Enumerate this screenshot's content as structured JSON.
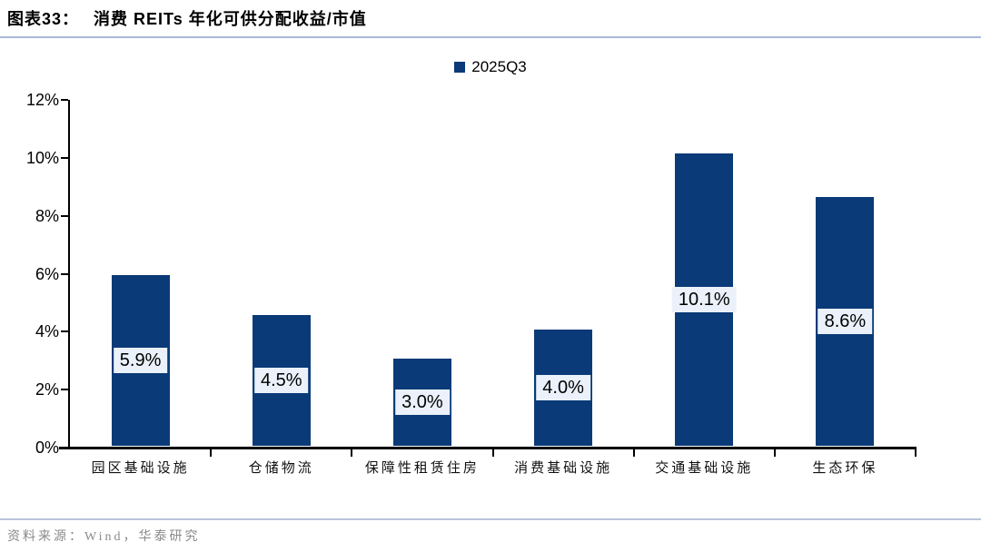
{
  "header": {
    "title_prefix": "图表33：",
    "title_text": "消费 REITs 年化可供分配收益/市值"
  },
  "legend": {
    "label": "2025Q3"
  },
  "footer": {
    "source": "资料来源：Wind，华泰研究"
  },
  "colors": {
    "bar": "#0a3a77",
    "value_label_bg": "#eaf1fa",
    "title_rule": "#a9b9d8",
    "footer_rule": "#b7c3da",
    "footer_text": "#8a8a8a",
    "axis": "#000000"
  },
  "chart_data": {
    "type": "bar",
    "title": "图表33：消费 REITs 年化可供分配收益/市值",
    "categories": [
      "园区基础设施",
      "仓储物流",
      "保障性租赁住房",
      "消费基础设施",
      "交通基础设施",
      "生态环保"
    ],
    "series": [
      {
        "name": "2025Q3",
        "values": [
          5.9,
          4.5,
          3.0,
          4.0,
          10.1,
          8.6
        ]
      }
    ],
    "value_labels": [
      "5.9%",
      "4.5%",
      "3.0%",
      "4.0%",
      "10.1%",
      "8.6%"
    ],
    "xlabel": "",
    "ylabel": "",
    "ylim": [
      0,
      12
    ],
    "ytick_values": [
      0,
      2,
      4,
      6,
      8,
      10,
      12
    ],
    "ytick_labels": [
      "0%",
      "2%",
      "4%",
      "6%",
      "8%",
      "10%",
      "12%"
    ],
    "grid": false,
    "legend_position": "top-center",
    "source": "资料来源：Wind，华泰研究"
  }
}
